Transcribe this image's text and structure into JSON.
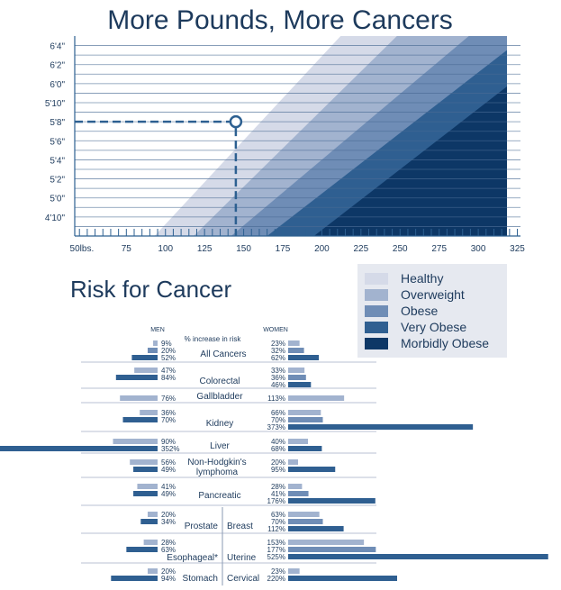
{
  "colors": {
    "healthy": "#d5dae8",
    "overweight": "#a2b3cf",
    "obese": "#6f8db6",
    "very_obese": "#2f5f91",
    "morbidly_obese": "#0d3766",
    "ink": "#1d3a5c",
    "line_accent": "#2d6091"
  },
  "chart_data": [
    {
      "type": "area",
      "title": "More Pounds, More Cancers",
      "x_ticks": [
        "50lbs.",
        "75",
        "100",
        "125",
        "150",
        "175",
        "200",
        "225",
        "250",
        "275",
        "300",
        "325"
      ],
      "x_tick_values": [
        50,
        75,
        100,
        125,
        150,
        175,
        200,
        225,
        250,
        275,
        300,
        325
      ],
      "y_ticks": [
        "4'10\"",
        "5'0\"",
        "5'2\"",
        "5'4\"",
        "5'6\"",
        "5'8\"",
        "5'10\"",
        "6'0\"",
        "6'2\"",
        "6'4\""
      ],
      "y_tick_values": [
        58,
        60,
        62,
        64,
        66,
        68,
        70,
        72,
        74,
        76
      ],
      "xlim": [
        42,
        327
      ],
      "ylim": [
        56,
        77
      ],
      "grid": true,
      "categories": [
        "Healthy",
        "Overweight",
        "Obese",
        "Very Obese",
        "Morbidly Obese"
      ],
      "series": [
        {
          "name": "Healthy",
          "boundary_weight_at_56in": 93,
          "boundary_weight_at_77in": 212
        },
        {
          "name": "Overweight",
          "boundary_weight_at_56in": 118,
          "boundary_weight_at_77in": 248
        },
        {
          "name": "Obese",
          "boundary_weight_at_56in": 142,
          "boundary_weight_at_77in": 294
        },
        {
          "name": "Very Obese",
          "boundary_weight_at_56in": 165,
          "boundary_weight_at_77in": 330
        },
        {
          "name": "Morbidly Obese",
          "boundary_weight_at_56in": 195,
          "boundary_weight_at_77in": 360
        }
      ],
      "highlight_point": {
        "x": 145,
        "y": 68
      }
    },
    {
      "type": "bar",
      "title": "Risk for Cancer",
      "legend": [
        "Healthy",
        "Overweight",
        "Obese",
        "Very Obese",
        "Morbidly Obese"
      ],
      "headers": {
        "men": "MEN",
        "women": "WOMEN",
        "note": "% increase in risk"
      },
      "rows": [
        {
          "label": "All Cancers",
          "men": [
            9,
            20,
            52
          ],
          "men_labels": [
            "9%",
            "20%",
            "52%"
          ],
          "women": [
            23,
            32,
            62
          ],
          "women_labels": [
            "23%",
            "32%",
            "62%"
          ]
        },
        {
          "label": "Colorectal",
          "men": [
            47,
            84
          ],
          "men_labels": [
            "47%",
            "84%"
          ],
          "women": [
            33,
            36,
            46
          ],
          "women_labels": [
            "33%",
            "36%",
            "46%"
          ]
        },
        {
          "label": "Gallbladder",
          "men": [
            76
          ],
          "men_labels": [
            "76%"
          ],
          "women": [
            113
          ],
          "women_labels": [
            "113%"
          ]
        },
        {
          "label": "Kidney",
          "men": [
            36,
            70
          ],
          "men_labels": [
            "36%",
            "70%"
          ],
          "women": [
            66,
            70,
            373
          ],
          "women_labels": [
            "66%",
            "70%",
            "373%"
          ]
        },
        {
          "label": "Liver",
          "men": [
            90,
            352
          ],
          "men_labels": [
            "90%",
            "352%"
          ],
          "women": [
            40,
            68
          ],
          "women_labels": [
            "40%",
            "68%"
          ]
        },
        {
          "label": "Non-Hodgkin's lymphoma",
          "label_lines": [
            "Non-Hodgkin's",
            "lymphoma"
          ],
          "men": [
            56,
            49
          ],
          "men_labels": [
            "56%",
            "49%"
          ],
          "women": [
            20,
            95
          ],
          "women_labels": [
            "20%",
            "95%"
          ]
        },
        {
          "label": "Pancreatic",
          "men": [
            41,
            49
          ],
          "men_labels": [
            "41%",
            "49%"
          ],
          "women": [
            28,
            41,
            176
          ],
          "women_labels": [
            "28%",
            "41%",
            "176%"
          ]
        },
        {
          "label_men": "Prostate",
          "label_women": "Breast",
          "men": [
            20,
            34
          ],
          "men_labels": [
            "20%",
            "34%"
          ],
          "women": [
            63,
            70,
            112
          ],
          "women_labels": [
            "63%",
            "70%",
            "112%"
          ]
        },
        {
          "label_men": "Esophageal*",
          "label_women": "Uterine",
          "men": [
            28,
            63
          ],
          "men_labels": [
            "28%",
            "63%"
          ],
          "women": [
            153,
            177,
            525
          ],
          "women_labels": [
            "153%",
            "177%",
            "525%"
          ]
        },
        {
          "label_men": "Stomach",
          "label_women": "Cervical",
          "men": [
            20,
            94
          ],
          "men_labels": [
            "20%",
            "94%"
          ],
          "women": [
            23,
            220
          ],
          "women_labels": [
            "23%",
            "220%"
          ]
        }
      ]
    }
  ]
}
